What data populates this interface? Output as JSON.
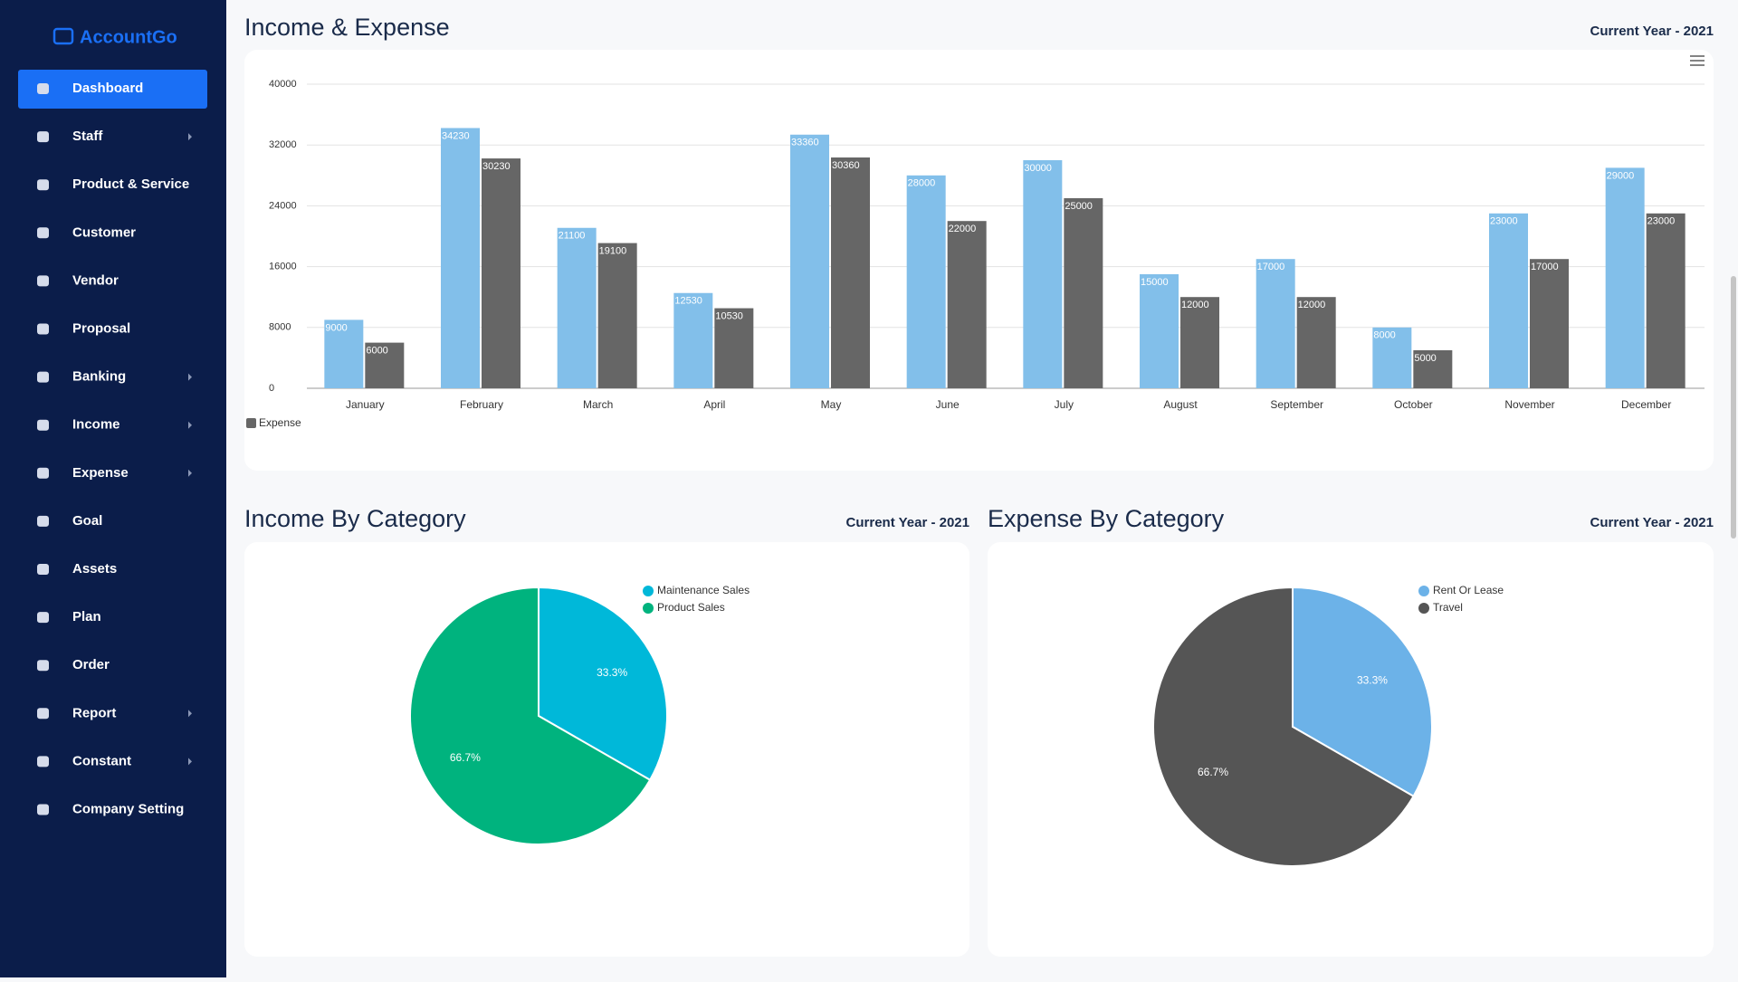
{
  "sidebar": {
    "brand": "AccountGo",
    "items": [
      {
        "label": "Dashboard",
        "active": true
      },
      {
        "label": "Staff",
        "submenu": true
      },
      {
        "label": "Product & Service"
      },
      {
        "label": "Customer"
      },
      {
        "label": "Vendor"
      },
      {
        "label": "Proposal"
      },
      {
        "label": "Banking",
        "submenu": true
      },
      {
        "label": "Income",
        "submenu": true
      },
      {
        "label": "Expense",
        "submenu": true
      },
      {
        "label": "Goal"
      },
      {
        "label": "Assets"
      },
      {
        "label": "Plan"
      },
      {
        "label": "Order"
      },
      {
        "label": "Report",
        "submenu": true
      },
      {
        "label": "Constant",
        "submenu": true
      },
      {
        "label": "Company Setting"
      }
    ]
  },
  "chart_data": [
    {
      "type": "bar",
      "title": "Income & Expense",
      "subtitle": "Current Year - 2021",
      "categories": [
        "January",
        "February",
        "March",
        "April",
        "May",
        "June",
        "July",
        "August",
        "September",
        "October",
        "November",
        "December"
      ],
      "series": [
        {
          "color": "#82bfea",
          "values": [
            9000,
            34230,
            21100,
            12530,
            33360,
            28000,
            30000,
            15000,
            17000,
            8000,
            23000,
            29000
          ]
        },
        {
          "name": "Expense",
          "color": "#666666",
          "values": [
            6000,
            30230,
            19100,
            10530,
            30360,
            22000,
            25000,
            12000,
            12000,
            5000,
            17000,
            23000
          ]
        }
      ],
      "ylim": [
        0,
        40000
      ],
      "yticks": [
        0,
        8000,
        16000,
        24000,
        32000,
        40000
      ],
      "grid": true,
      "legend": "bottom-left"
    },
    {
      "type": "pie",
      "title": "Income By Category",
      "subtitle": "Current Year - 2021",
      "categories": [
        "Maintenance Sales",
        "Product Sales"
      ],
      "values": [
        33.3,
        66.7
      ],
      "value_labels": [
        "33.3%",
        "66.7%"
      ],
      "colors": [
        "#00b8d9",
        "#00b37e"
      ],
      "legend": "top-right"
    },
    {
      "type": "pie",
      "title": "Expense By Category",
      "subtitle": "Current Year - 2021",
      "categories": [
        "Rent Or Lease",
        "Travel"
      ],
      "values": [
        33.3,
        66.7
      ],
      "value_labels": [
        "33.3%",
        "66.7%"
      ],
      "colors": [
        "#6cb2e8",
        "#555555"
      ],
      "legend": "top-right"
    }
  ]
}
